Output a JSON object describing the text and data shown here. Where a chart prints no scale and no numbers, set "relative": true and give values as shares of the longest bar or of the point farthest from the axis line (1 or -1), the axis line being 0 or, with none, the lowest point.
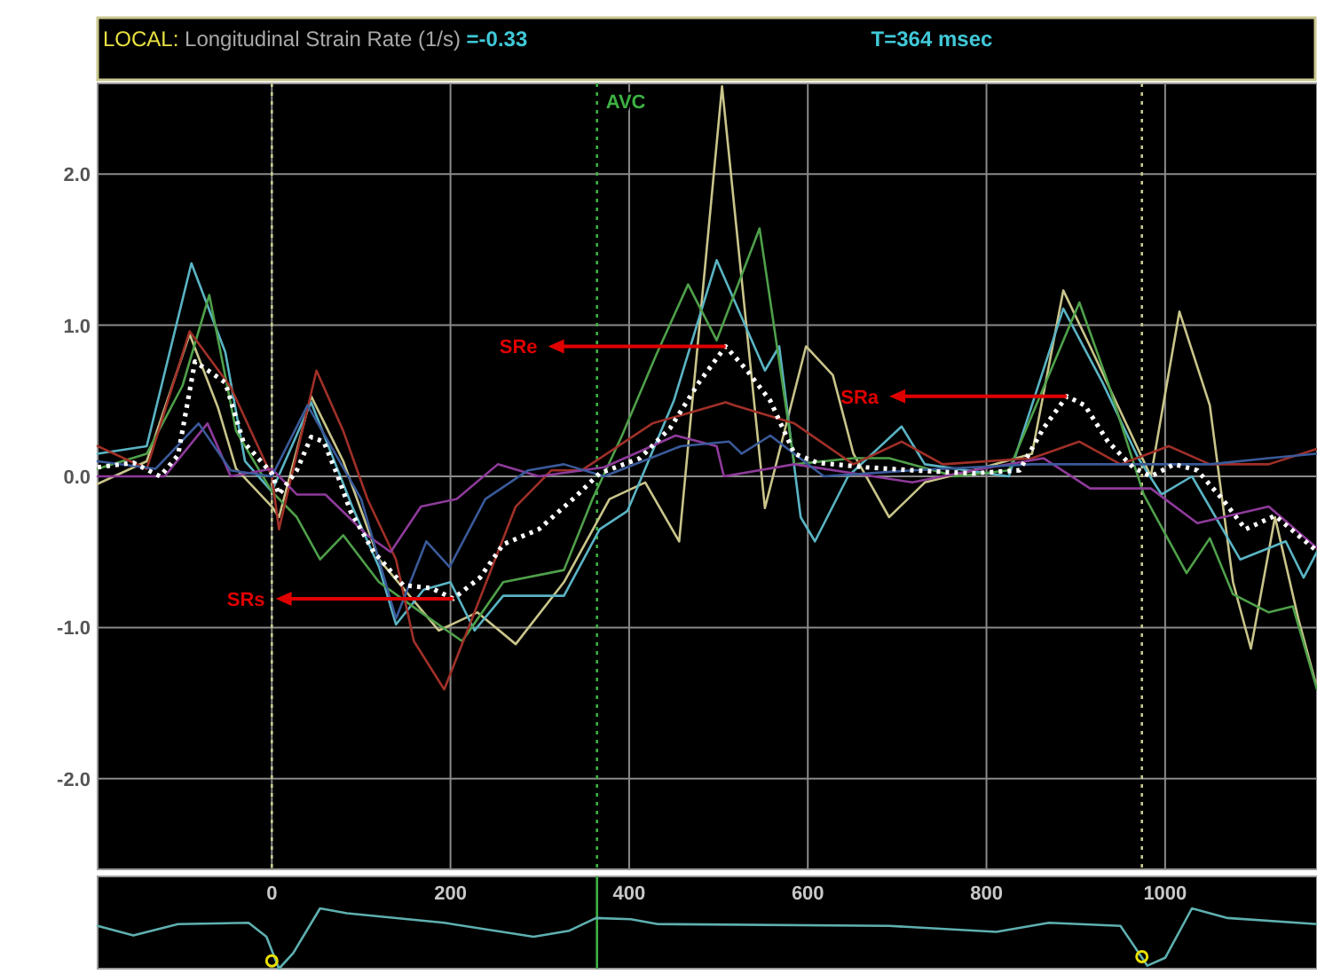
{
  "chart_data": [
    {
      "type": "line",
      "title": "LOCAL:",
      "ylabel": "Longitudinal Strain Rate (1/s)",
      "xlim": [
        -195,
        1170
      ],
      "ylim": [
        -2.6,
        2.6
      ],
      "xticks": [
        0,
        200,
        400,
        600,
        800,
        1000
      ],
      "yticks": [
        {
          "value": 2,
          "label": "2.0"
        },
        {
          "value": 1,
          "label": "1.0"
        },
        {
          "value": 0,
          "label": "0.0"
        },
        {
          "value": -1,
          "label": "-1.0"
        },
        {
          "value": -2,
          "label": "-2.0"
        }
      ],
      "tick_labels": "y",
      "grid": true,
      "annotations": [
        "=-0.33",
        "T=364 msec",
        {
          "text": "SRs",
          "x": 203,
          "y": -0.81
        },
        {
          "text": "SRe",
          "x": 508,
          "y": 0.86
        },
        {
          "text": "SRa",
          "x": 890,
          "y": 0.53
        }
      ],
      "ref_lines": [
        {
          "axis": "x",
          "value": 0,
          "color": "#c8c890",
          "line_style": "dotted"
        },
        {
          "axis": "x",
          "value": 364,
          "label": "AVC",
          "color": "#3cb043",
          "line_style": "dotted"
        },
        {
          "axis": "x",
          "value": 974,
          "color": "#c8c890",
          "line_style": "dotted"
        }
      ],
      "series": [
        {
          "color": "#c9c58a",
          "x": [
            -195,
            -140,
            -92,
            -60,
            -40,
            0,
            8,
            44,
            80,
            120,
            187,
            230,
            273,
            327,
            378,
            418,
            456,
            504,
            552,
            598,
            628,
            651,
            691,
            731,
            785,
            851,
            886,
            916,
            950,
            984,
            1016,
            1050,
            1076,
            1096,
            1123,
            1149,
            1170
          ],
          "values": [
            -0.05,
            0.1,
            0.94,
            0.45,
            0.05,
            -0.2,
            -0.27,
            0.53,
            0.1,
            -0.55,
            -1.02,
            -0.9,
            -1.11,
            -0.7,
            -0.15,
            -0.04,
            -0.43,
            2.58,
            -0.21,
            0.86,
            0.67,
            0.15,
            -0.27,
            -0.04,
            0.04,
            0.15,
            1.23,
            0.86,
            0.43,
            0,
            1.09,
            0.47,
            -0.7,
            -1.14,
            -0.27,
            -0.94,
            -1.4
          ]
        },
        {
          "color": "#5ab4c4",
          "x": [
            -195,
            -140,
            -90,
            -52,
            -30,
            0,
            44,
            90,
            120,
            139,
            170,
            200,
            227,
            259,
            327,
            367,
            398,
            450,
            498,
            552,
            568,
            592,
            608,
            645,
            705,
            731,
            825,
            886,
            930,
            970,
            996,
            1030,
            1084,
            1135,
            1155,
            1170
          ],
          "values": [
            0.15,
            0.2,
            1.41,
            0.82,
            0.1,
            -0.1,
            0.49,
            -0.2,
            -0.6,
            -0.98,
            -0.75,
            -0.7,
            -1.02,
            -0.79,
            -0.79,
            -0.35,
            -0.23,
            0.5,
            1.43,
            0.7,
            0.86,
            -0.27,
            -0.43,
            0,
            0.33,
            0.08,
            0,
            1.11,
            0.62,
            0.12,
            -0.12,
            0,
            -0.55,
            -0.43,
            -0.67,
            -0.5
          ]
        },
        {
          "color": "#4fa04a",
          "x": [
            -195,
            -140,
            -100,
            -70,
            -40,
            0,
            28,
            54,
            80,
            120,
            167,
            213,
            259,
            327,
            359,
            392,
            430,
            466,
            498,
            546,
            585,
            651,
            691,
            765,
            825,
            904,
            936,
            976,
            1024,
            1050,
            1076,
            1116,
            1143,
            1170
          ],
          "values": [
            0.05,
            0.15,
            0.6,
            1.2,
            0.3,
            -0.1,
            -0.27,
            -0.55,
            -0.39,
            -0.7,
            -0.9,
            -1.09,
            -0.7,
            -0.62,
            -0.15,
            0.27,
            0.8,
            1.27,
            0.9,
            1.64,
            0.08,
            0.12,
            0.12,
            0,
            0.04,
            1.15,
            0.62,
            -0.12,
            -0.64,
            -0.41,
            -0.78,
            -0.9,
            -0.86,
            -1.41
          ]
        },
        {
          "color": "#a03028",
          "x": [
            -195,
            -140,
            -92,
            -46,
            0,
            8,
            50,
            80,
            107,
            139,
            159,
            193,
            219,
            273,
            313,
            347,
            426,
            508,
            518,
            585,
            651,
            705,
            751,
            851,
            904,
            950,
            1004,
            1050,
            1116,
            1169
          ],
          "values": [
            0.2,
            0.05,
            0.96,
            0.59,
            0,
            -0.35,
            0.7,
            0.3,
            -0.15,
            -0.55,
            -1.09,
            -1.41,
            -1.02,
            -0.2,
            0.04,
            0.04,
            0.35,
            0.49,
            0.47,
            0.35,
            0.08,
            0.23,
            0.08,
            0.12,
            0.23,
            0.08,
            0.2,
            0.08,
            0.08,
            0.18
          ]
        },
        {
          "color": "#8e3a9a",
          "x": [
            -195,
            -120,
            -72,
            -46,
            0,
            28,
            60,
            107,
            133,
            167,
            207,
            253,
            299,
            372,
            452,
            498,
            506,
            585,
            717,
            785,
            864,
            916,
            984,
            1036,
            1116,
            1169
          ],
          "values": [
            0,
            0,
            0.35,
            0,
            0.05,
            -0.12,
            -0.12,
            -0.39,
            -0.5,
            -0.2,
            -0.15,
            0.08,
            0,
            0.06,
            0.27,
            0.2,
            0,
            0.08,
            -0.04,
            0.04,
            0.12,
            -0.08,
            -0.08,
            -0.31,
            -0.2,
            -0.47
          ]
        },
        {
          "color": "#3a5a9a",
          "x": [
            -195,
            -130,
            -82,
            -46,
            0,
            40,
            100,
            139,
            173,
            199,
            239,
            287,
            327,
            372,
            458,
            512,
            526,
            558,
            618,
            717,
            851,
            916,
            984,
            1050,
            1116,
            1169
          ],
          "values": [
            0.1,
            0.05,
            0.35,
            0.04,
            0,
            0.47,
            -0.15,
            -0.94,
            -0.43,
            -0.6,
            -0.15,
            0.04,
            0.08,
            0,
            0.2,
            0.23,
            0.15,
            0.27,
            0,
            0.04,
            0.08,
            0.08,
            0.08,
            0.08,
            0.12,
            0.15
          ]
        },
        {
          "color": "#ffffff",
          "line_style": "dotted",
          "x": [
            -195,
            -155,
            -125,
            -105,
            -86,
            -52,
            -32,
            0,
            8,
            28,
            44,
            58,
            74,
            88,
            114,
            147,
            179,
            203,
            233,
            259,
            299,
            339,
            367,
            412,
            446,
            478,
            508,
            532,
            558,
            585,
            611,
            665,
            717,
            785,
            837,
            864,
            890,
            910,
            936,
            964,
            984,
            1010,
            1036,
            1064,
            1090,
            1123,
            1149,
            1169
          ],
          "values": [
            0.06,
            0.09,
            0,
            0.14,
            0.76,
            0.62,
            0.23,
            0.02,
            -0.12,
            0.04,
            0.26,
            0.23,
            0,
            -0.23,
            -0.5,
            -0.72,
            -0.74,
            -0.81,
            -0.67,
            -0.45,
            -0.35,
            -0.14,
            0.02,
            0.12,
            0.32,
            0.62,
            0.86,
            0.7,
            0.5,
            0.15,
            0.09,
            0.06,
            0.04,
            0.02,
            0.04,
            0.32,
            0.53,
            0.47,
            0.23,
            0.06,
            0,
            0.08,
            0.04,
            -0.15,
            -0.35,
            -0.26,
            -0.39,
            -0.49
          ]
        }
      ]
    },
    {
      "type": "line",
      "relative": true,
      "xlim": [
        -195,
        1170
      ],
      "xticks": [
        0,
        200,
        400,
        600,
        800,
        1000
      ],
      "tick_labels": "x",
      "ref_lines": [
        {
          "axis": "x",
          "value": 364,
          "color": "#3cb043",
          "line_style": "solid"
        }
      ],
      "series": [
        {
          "color": "#5fb0b0",
          "x": [
            -195,
            -155,
            -105,
            -26,
            -6,
            8,
            24,
            54,
            84,
            193,
            293,
            333,
            363,
            402,
            432,
            691,
            811,
            870,
            950,
            980,
            1000,
            1030,
            1070,
            1170
          ],
          "values": [
            0.71,
            0.55,
            0.74,
            0.76,
            0.53,
            0,
            0.26,
            1,
            0.92,
            0.76,
            0.53,
            0.63,
            0.84,
            0.82,
            0.74,
            0.71,
            0.61,
            0.76,
            0.71,
            0.05,
            0.18,
            1,
            0.84,
            0.74
          ]
        },
        {
          "type": "scatter",
          "marker": "circle",
          "color": "#e8e000",
          "x": [
            0,
            974
          ],
          "values": [
            0.13,
            0.2
          ]
        }
      ]
    }
  ]
}
